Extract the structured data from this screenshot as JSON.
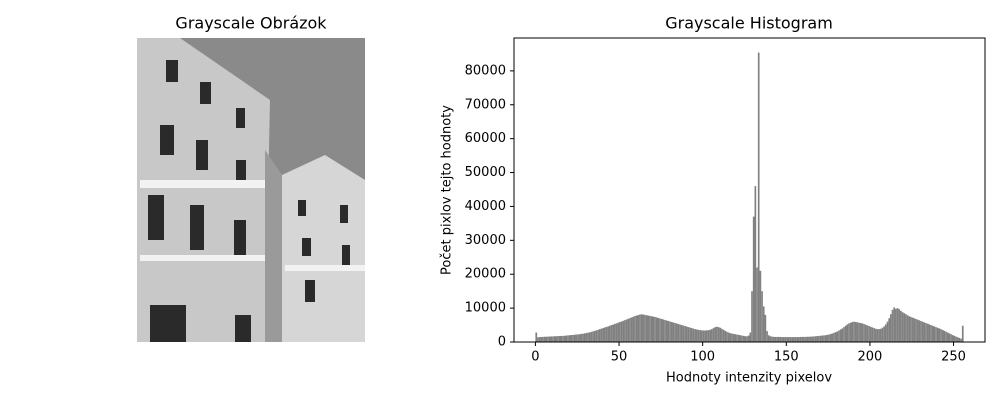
{
  "chart_data": [
    {
      "type": "image",
      "title": "Grayscale Obrázok"
    },
    {
      "type": "histogram",
      "title": "Grayscale Histogram",
      "x_label": "Hodnoty intenzity pixelov",
      "y_label": "Počet pixlov tejto hodnoty",
      "color": "#808080",
      "xlim": [
        -12.8,
        268.8
      ],
      "ylim": [
        0,
        89700
      ],
      "xticks": [
        0,
        50,
        100,
        150,
        200,
        250
      ],
      "yticks": [
        0,
        10000,
        20000,
        30000,
        40000,
        50000,
        60000,
        70000,
        80000
      ],
      "bins": [
        0,
        1,
        2,
        3,
        4,
        5,
        6,
        7,
        8,
        9,
        10,
        11,
        12,
        13,
        14,
        15,
        16,
        17,
        18,
        19,
        20,
        21,
        22,
        23,
        24,
        25,
        26,
        27,
        28,
        29,
        30,
        31,
        32,
        33,
        34,
        35,
        36,
        37,
        38,
        39,
        40,
        41,
        42,
        43,
        44,
        45,
        46,
        47,
        48,
        49,
        50,
        51,
        52,
        53,
        54,
        55,
        56,
        57,
        58,
        59,
        60,
        61,
        62,
        63,
        64,
        65,
        66,
        67,
        68,
        69,
        70,
        71,
        72,
        73,
        74,
        75,
        76,
        77,
        78,
        79,
        80,
        81,
        82,
        83,
        84,
        85,
        86,
        87,
        88,
        89,
        90,
        91,
        92,
        93,
        94,
        95,
        96,
        97,
        98,
        99,
        100,
        101,
        102,
        103,
        104,
        105,
        106,
        107,
        108,
        109,
        110,
        111,
        112,
        113,
        114,
        115,
        116,
        117,
        118,
        119,
        120,
        121,
        122,
        123,
        124,
        125,
        126,
        127,
        128,
        129,
        130,
        131,
        132,
        133,
        134,
        135,
        136,
        137,
        138,
        139,
        140,
        141,
        142,
        143,
        144,
        145,
        146,
        147,
        148,
        149,
        150,
        151,
        152,
        153,
        154,
        155,
        156,
        157,
        158,
        159,
        160,
        161,
        162,
        163,
        164,
        165,
        166,
        167,
        168,
        169,
        170,
        171,
        172,
        173,
        174,
        175,
        176,
        177,
        178,
        179,
        180,
        181,
        182,
        183,
        184,
        185,
        186,
        187,
        188,
        189,
        190,
        191,
        192,
        193,
        194,
        195,
        196,
        197,
        198,
        199,
        200,
        201,
        202,
        203,
        204,
        205,
        206,
        207,
        208,
        209,
        210,
        211,
        212,
        213,
        214,
        215,
        216,
        217,
        218,
        219,
        220,
        221,
        222,
        223,
        224,
        225,
        226,
        227,
        228,
        229,
        230,
        231,
        232,
        233,
        234,
        235,
        236,
        237,
        238,
        239,
        240,
        241,
        242,
        243,
        244,
        245,
        246,
        247,
        248,
        249,
        250,
        251,
        252,
        253,
        254,
        255,
        256
      ],
      "values": [
        2800,
        1400,
        1450,
        1500,
        1500,
        1550,
        1550,
        1600,
        1600,
        1650,
        1650,
        1700,
        1700,
        1750,
        1750,
        1800,
        1800,
        1850,
        1900,
        1950,
        2000,
        2050,
        2100,
        2150,
        2200,
        2250,
        2300,
        2400,
        2450,
        2550,
        2650,
        2750,
        2850,
        3000,
        3150,
        3300,
        3450,
        3600,
        3800,
        3950,
        4100,
        4300,
        4450,
        4600,
        4800,
        5000,
        5150,
        5350,
        5500,
        5700,
        5900,
        6050,
        6250,
        6450,
        6650,
        6850,
        7050,
        7250,
        7450,
        7650,
        7800,
        7950,
        8100,
        8200,
        8100,
        8000,
        7900,
        7800,
        7700,
        7600,
        7500,
        7400,
        7250,
        7100,
        6950,
        6800,
        6650,
        6500,
        6350,
        6200,
        6050,
        5900,
        5750,
        5600,
        5450,
        5300,
        5150,
        5000,
        4850,
        4700,
        4550,
        4400,
        4250,
        4100,
        3950,
        3800,
        3700,
        3600,
        3500,
        3450,
        3400,
        3400,
        3450,
        3500,
        3600,
        3800,
        4100,
        4400,
        4500,
        4400,
        4200,
        3900,
        3600,
        3300,
        3000,
        2800,
        2600,
        2500,
        2400,
        2300,
        2200,
        2100,
        2000,
        1900,
        1800,
        1700,
        1700,
        1900,
        2800,
        15000,
        37000,
        46000,
        22000,
        85400,
        21000,
        15000,
        10500,
        8000,
        3200,
        2000,
        1700,
        1600,
        1500,
        1500,
        1500,
        1500,
        1500,
        1450,
        1450,
        1450,
        1450,
        1450,
        1450,
        1450,
        1450,
        1450,
        1450,
        1450,
        1500,
        1500,
        1500,
        1500,
        1550,
        1550,
        1600,
        1600,
        1650,
        1700,
        1750,
        1800,
        1850,
        1900,
        1950,
        2000,
        2100,
        2200,
        2350,
        2500,
        2700,
        2900,
        3100,
        3400,
        3700,
        4000,
        4400,
        4800,
        5200,
        5500,
        5700,
        5900,
        6000,
        5900,
        5800,
        5700,
        5600,
        5500,
        5300,
        5100,
        4900,
        4700,
        4500,
        4300,
        4100,
        3900,
        3800,
        3800,
        3900,
        4200,
        4600,
        5200,
        6000,
        7000,
        8200,
        9500,
        10200,
        9800,
        10000,
        9700,
        9200,
        8800,
        8500,
        8200,
        7900,
        7600,
        7400,
        7200,
        7000,
        6800,
        6600,
        6400,
        6200,
        6000,
        5800,
        5600,
        5400,
        5200,
        5000,
        4800,
        4600,
        4400,
        4200,
        4000,
        3800,
        3550,
        3300,
        3050,
        2800,
        2550,
        2300,
        2050,
        1800,
        1600,
        1400,
        1200,
        1000,
        4800
      ]
    }
  ]
}
